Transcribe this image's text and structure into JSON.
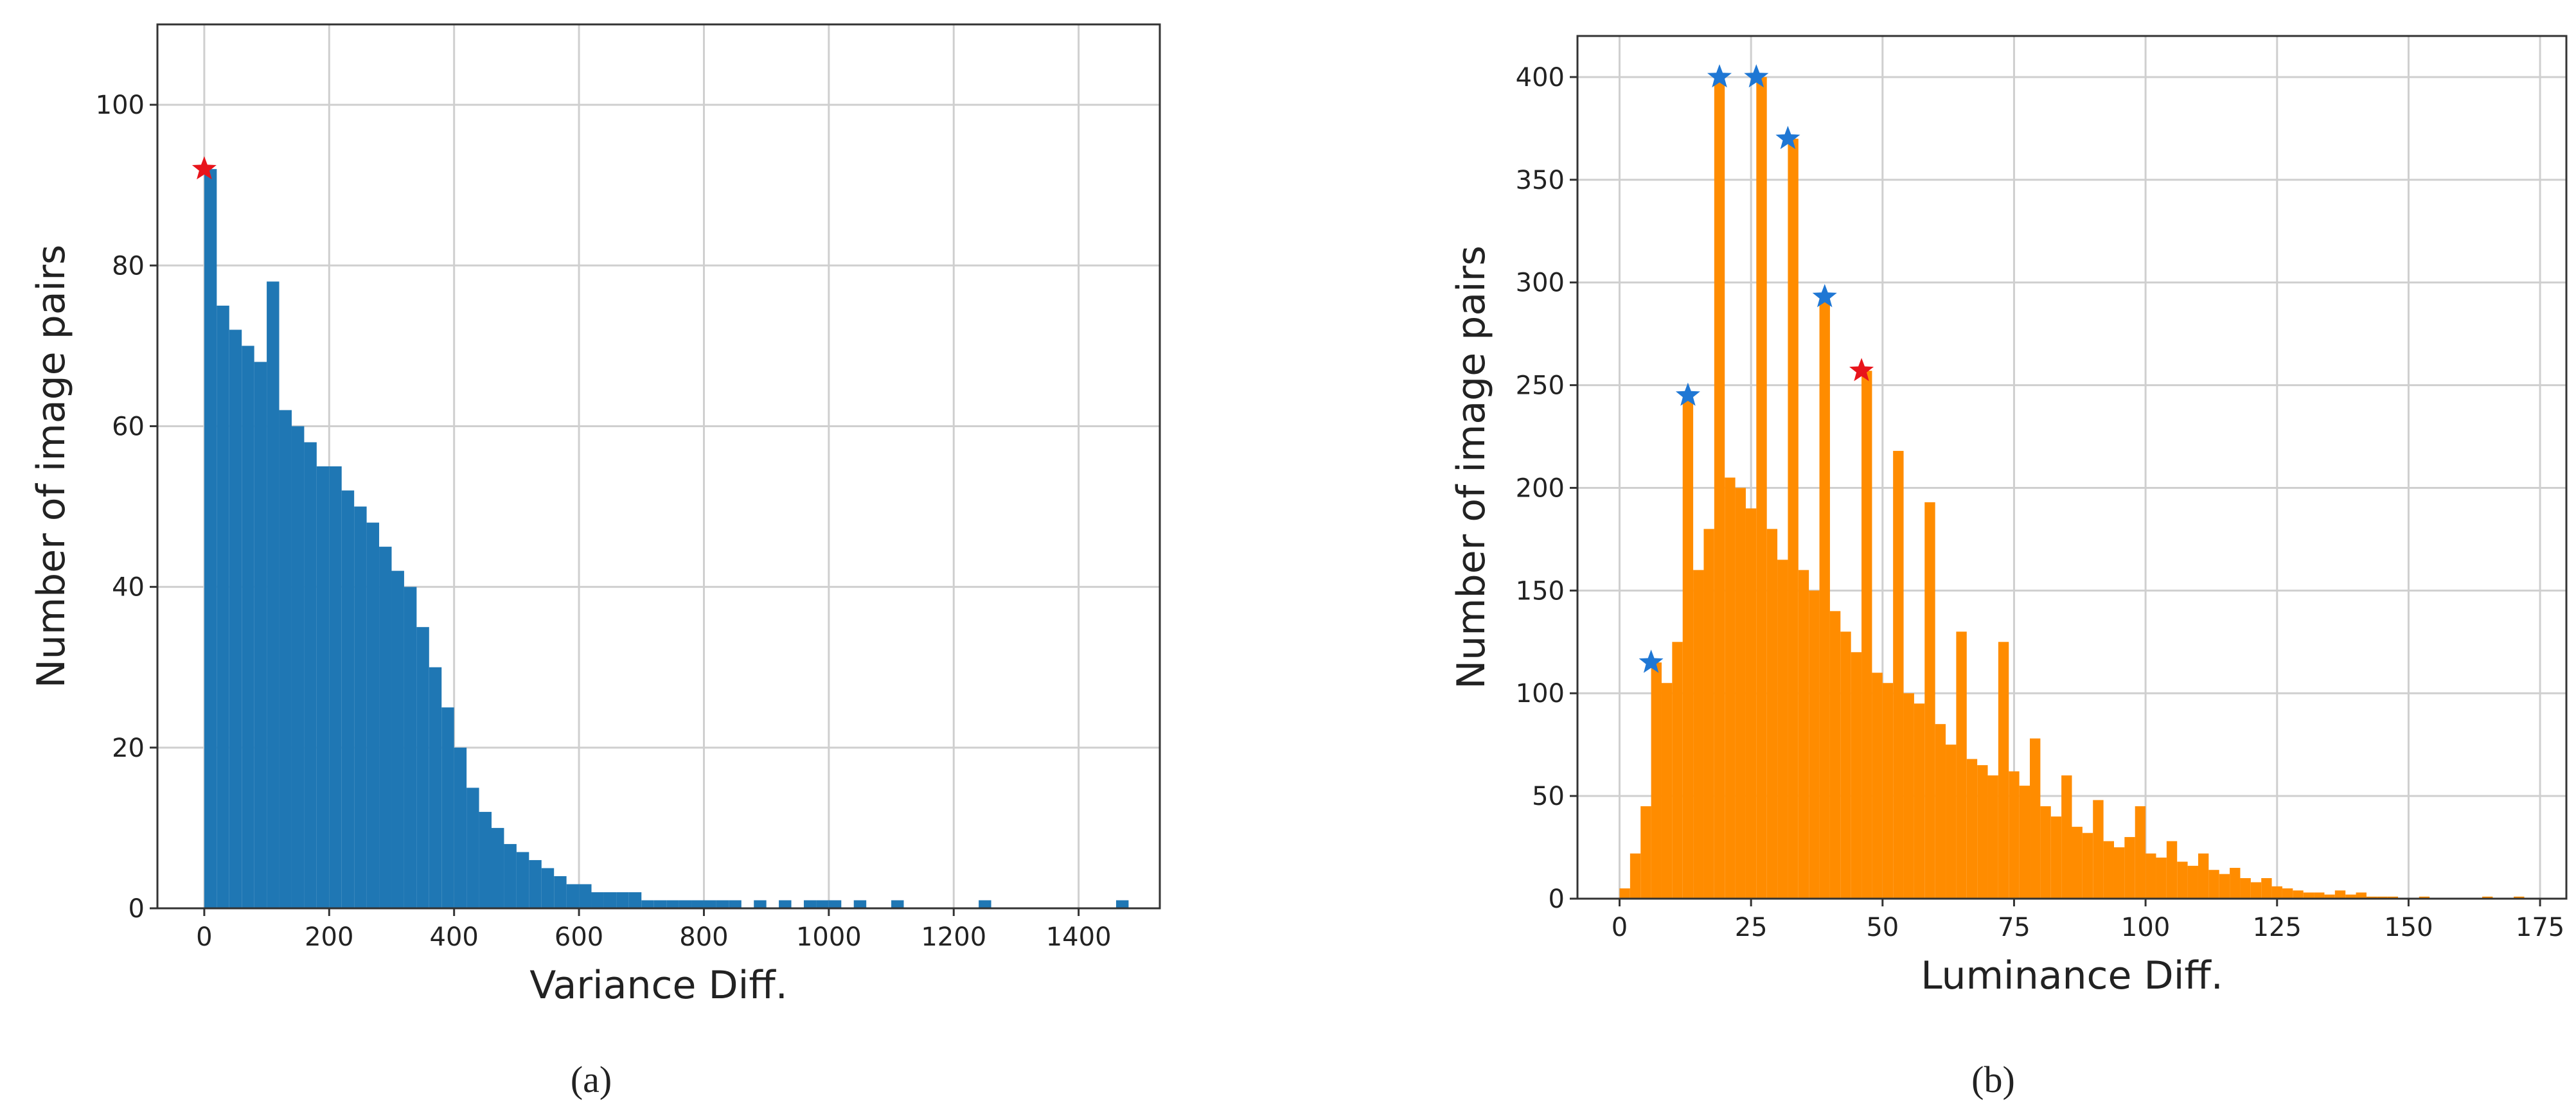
{
  "chart_data": [
    {
      "type": "histogram",
      "xlabel": "Variance Diff.",
      "ylabel": "Number of image pairs",
      "panel": "(a)",
      "color": "#1f77b4",
      "grid": true,
      "xlim": [
        -75,
        1530
      ],
      "ylim": [
        0,
        110
      ],
      "xticks": [
        0,
        200,
        400,
        600,
        800,
        1000,
        1200,
        1400
      ],
      "yticks": [
        0,
        20,
        40,
        60,
        80,
        100
      ],
      "bins": [
        0,
        20,
        40,
        60,
        80,
        100,
        120,
        140,
        160,
        180,
        200,
        220,
        240,
        260,
        280,
        300,
        320,
        340,
        360,
        380,
        400,
        420,
        440,
        460,
        480,
        500,
        520,
        540,
        560,
        580,
        600,
        620,
        640,
        660,
        680,
        700,
        720,
        740,
        760,
        780,
        800,
        820,
        840,
        860,
        880,
        900,
        920,
        940,
        960,
        980,
        1000,
        1020,
        1040,
        1060,
        1080,
        1100,
        1120,
        1140,
        1160,
        1180,
        1200,
        1220,
        1240,
        1260,
        1280,
        1300,
        1320,
        1340,
        1360,
        1380,
        1400,
        1420,
        1440,
        1460,
        1480
      ],
      "counts": [
        92,
        75,
        72,
        70,
        68,
        78,
        62,
        60,
        58,
        55,
        55,
        52,
        50,
        48,
        45,
        42,
        40,
        35,
        30,
        25,
        20,
        15,
        12,
        10,
        8,
        7,
        6,
        5,
        4,
        3,
        3,
        2,
        2,
        2,
        2,
        1,
        1,
        1,
        1,
        1,
        1,
        1,
        1,
        0,
        1,
        0,
        1,
        0,
        1,
        1,
        1,
        0,
        1,
        0,
        0,
        1,
        0,
        0,
        0,
        0,
        0,
        0,
        1,
        0,
        0,
        0,
        0,
        0,
        0,
        0,
        0,
        0,
        0,
        1
      ],
      "markers": [
        {
          "x": 0,
          "y": 92,
          "color": "#e8141b"
        }
      ]
    },
    {
      "type": "histogram",
      "xlabel": "Luminance Diff.",
      "ylabel": "Number of image pairs",
      "panel": "(b)",
      "color": "#ff8c00",
      "grid": true,
      "xlim": [
        -8,
        180
      ],
      "ylim": [
        0,
        420
      ],
      "xticks": [
        0,
        25,
        50,
        75,
        100,
        125,
        150,
        175
      ],
      "yticks": [
        0,
        50,
        100,
        150,
        200,
        250,
        300,
        350,
        400
      ],
      "bins": [
        0,
        2,
        4,
        6,
        8,
        10,
        12,
        14,
        16,
        18,
        20,
        22,
        24,
        26,
        28,
        30,
        32,
        34,
        36,
        38,
        40,
        42,
        44,
        46,
        48,
        50,
        52,
        54,
        56,
        58,
        60,
        62,
        64,
        66,
        68,
        70,
        72,
        74,
        76,
        78,
        80,
        82,
        84,
        86,
        88,
        90,
        92,
        94,
        96,
        98,
        100,
        102,
        104,
        106,
        108,
        110,
        112,
        114,
        116,
        118,
        120,
        122,
        124,
        126,
        128,
        130,
        132,
        134,
        136,
        138,
        140,
        142,
        144,
        146,
        148,
        150,
        152,
        154,
        156,
        158,
        160,
        162,
        164,
        166,
        168,
        170,
        172
      ],
      "counts": [
        5,
        22,
        45,
        115,
        105,
        125,
        245,
        160,
        180,
        400,
        205,
        200,
        190,
        400,
        180,
        165,
        370,
        160,
        150,
        293,
        140,
        130,
        120,
        257,
        110,
        105,
        218,
        100,
        95,
        193,
        85,
        75,
        130,
        68,
        65,
        60,
        125,
        62,
        55,
        78,
        45,
        40,
        60,
        35,
        32,
        48,
        28,
        25,
        30,
        45,
        22,
        20,
        28,
        18,
        16,
        22,
        14,
        12,
        15,
        10,
        8,
        10,
        6,
        5,
        4,
        3,
        3,
        2,
        4,
        2,
        3,
        1,
        1,
        1,
        0,
        0,
        1,
        0,
        0,
        0,
        0,
        0,
        1,
        0,
        0,
        1
      ],
      "markers": [
        {
          "x": 6,
          "y": 115,
          "color": "#1f77d4"
        },
        {
          "x": 13,
          "y": 245,
          "color": "#1f77d4"
        },
        {
          "x": 19,
          "y": 400,
          "color": "#1f77d4"
        },
        {
          "x": 26,
          "y": 400,
          "color": "#1f77d4"
        },
        {
          "x": 32,
          "y": 370,
          "color": "#1f77d4"
        },
        {
          "x": 39,
          "y": 293,
          "color": "#1f77d4"
        },
        {
          "x": 46,
          "y": 257,
          "color": "#e8141b"
        }
      ]
    }
  ]
}
